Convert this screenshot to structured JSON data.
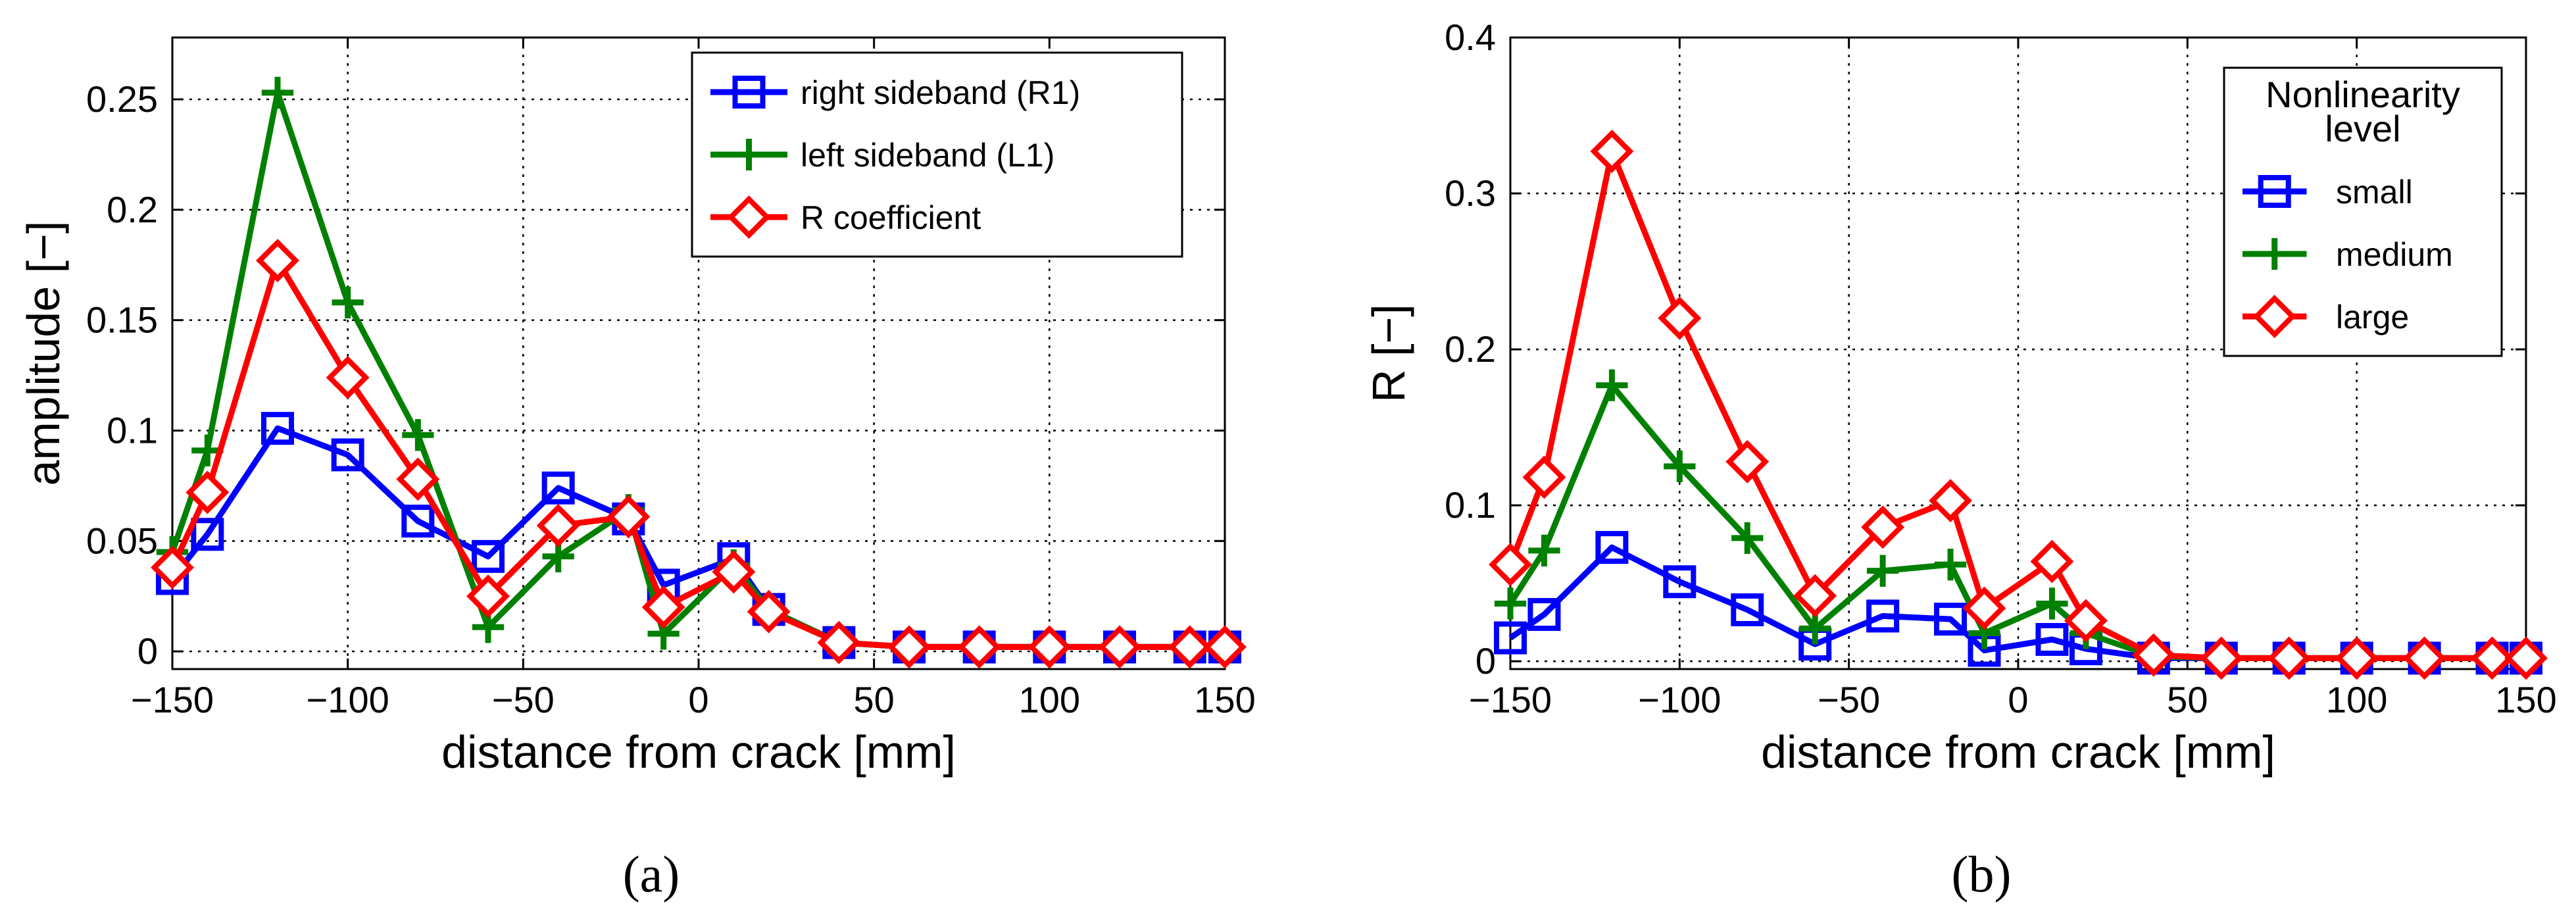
{
  "chart_data": [
    {
      "type": "line",
      "panel_label": "(a)",
      "xlabel": "distance from crack [mm]",
      "ylabel": "amplitude [−]",
      "xlim": [
        -150,
        150
      ],
      "ylim": [
        -0.008,
        0.278
      ],
      "xticks": [
        -150,
        -100,
        -50,
        0,
        50,
        100,
        150
      ],
      "xtick_labels": [
        "−150",
        "−100",
        "−50",
        "0",
        "50",
        "100",
        "150"
      ],
      "yticks": [
        0,
        0.05,
        0.1,
        0.15,
        0.2,
        0.25
      ],
      "ytick_labels": [
        "0",
        "0.05",
        "0.1",
        "0.15",
        "0.2",
        "0.25"
      ],
      "grid": true,
      "legend_position": "top-right",
      "legend_title": [],
      "x": [
        -150,
        -140,
        -120,
        -100,
        -80,
        -60,
        -40,
        -20,
        -10,
        10,
        20,
        40,
        60,
        80,
        100,
        120,
        140,
        150
      ],
      "series": [
        {
          "name": "right sideband (R1)",
          "color": "#0000ff",
          "marker": "square",
          "values": [
            0.033,
            0.053,
            0.101,
            0.089,
            0.059,
            0.043,
            0.074,
            0.06,
            0.03,
            0.042,
            0.019,
            0.004,
            0.002,
            0.002,
            0.002,
            0.002,
            0.002,
            0.002
          ]
        },
        {
          "name": "left sideband (L1)",
          "color": "#008000",
          "marker": "plus",
          "values": [
            0.045,
            0.091,
            0.253,
            0.158,
            0.098,
            0.011,
            0.043,
            0.064,
            0.008,
            0.039,
            0.019,
            0.004,
            0.002,
            0.002,
            0.002,
            0.002,
            0.002,
            0.002
          ]
        },
        {
          "name": "R coefficient",
          "color": "#ff0000",
          "marker": "diamond",
          "values": [
            0.038,
            0.072,
            0.177,
            0.124,
            0.078,
            0.025,
            0.057,
            0.061,
            0.02,
            0.036,
            0.018,
            0.004,
            0.002,
            0.002,
            0.002,
            0.002,
            0.002,
            0.002
          ]
        }
      ]
    },
    {
      "type": "line",
      "panel_label": "(b)",
      "xlabel": "distance from crack [mm]",
      "ylabel": "R [−]",
      "xlim": [
        -150,
        150
      ],
      "ylim": [
        -0.005,
        0.4
      ],
      "xticks": [
        -150,
        -100,
        -50,
        0,
        50,
        100,
        150
      ],
      "xtick_labels": [
        "−150",
        "−100",
        "−50",
        "0",
        "50",
        "100",
        "150"
      ],
      "yticks": [
        0,
        0.1,
        0.2,
        0.3,
        0.4
      ],
      "ytick_labels": [
        "0",
        "0.1",
        "0.2",
        "0.3",
        "0.4"
      ],
      "grid": true,
      "legend_position": "top-right",
      "legend_title": [
        "Nonlinearity",
        "level"
      ],
      "x": [
        -150,
        -140,
        -120,
        -100,
        -80,
        -60,
        -40,
        -20,
        -10,
        10,
        20,
        40,
        60,
        80,
        100,
        120,
        140,
        150
      ],
      "series": [
        {
          "name": "small",
          "color": "#0000ff",
          "marker": "square",
          "values": [
            0.015,
            0.03,
            0.073,
            0.051,
            0.033,
            0.011,
            0.029,
            0.027,
            0.007,
            0.014,
            0.008,
            0.002,
            0.002,
            0.002,
            0.002,
            0.002,
            0.002,
            0.002
          ]
        },
        {
          "name": "medium",
          "color": "#008000",
          "marker": "plus",
          "values": [
            0.037,
            0.071,
            0.177,
            0.125,
            0.079,
            0.021,
            0.058,
            0.062,
            0.018,
            0.037,
            0.018,
            0.003,
            0.002,
            0.002,
            0.002,
            0.002,
            0.002,
            0.002
          ]
        },
        {
          "name": "large",
          "color": "#ff0000",
          "marker": "diamond",
          "values": [
            0.062,
            0.118,
            0.327,
            0.22,
            0.128,
            0.042,
            0.086,
            0.103,
            0.034,
            0.064,
            0.026,
            0.004,
            0.002,
            0.002,
            0.002,
            0.002,
            0.002,
            0.002
          ]
        }
      ]
    }
  ]
}
